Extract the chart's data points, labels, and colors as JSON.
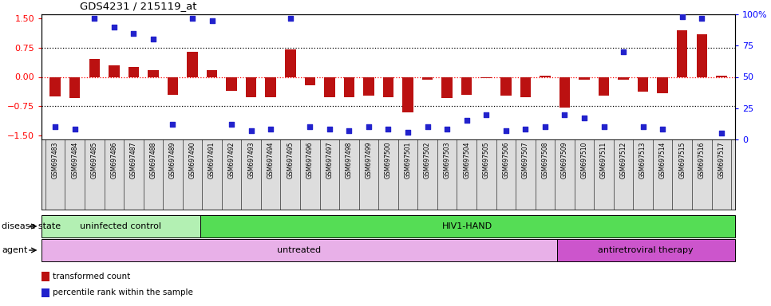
{
  "title": "GDS4231 / 215119_at",
  "samples": [
    "GSM697483",
    "GSM697484",
    "GSM697485",
    "GSM697486",
    "GSM697487",
    "GSM697488",
    "GSM697489",
    "GSM697490",
    "GSM697491",
    "GSM697492",
    "GSM697493",
    "GSM697494",
    "GSM697495",
    "GSM697496",
    "GSM697497",
    "GSM697498",
    "GSM697499",
    "GSM697500",
    "GSM697501",
    "GSM697502",
    "GSM697503",
    "GSM697504",
    "GSM697505",
    "GSM697506",
    "GSM697507",
    "GSM697508",
    "GSM697509",
    "GSM697510",
    "GSM697511",
    "GSM697512",
    "GSM697513",
    "GSM697514",
    "GSM697515",
    "GSM697516",
    "GSM697517"
  ],
  "transformed_count": [
    -0.5,
    -0.55,
    0.45,
    0.3,
    0.25,
    0.18,
    -0.45,
    0.65,
    0.18,
    -0.35,
    -0.52,
    -0.52,
    0.7,
    -0.22,
    -0.52,
    -0.52,
    -0.48,
    -0.52,
    -0.9,
    -0.08,
    -0.55,
    -0.45,
    -0.04,
    -0.48,
    -0.52,
    0.04,
    -0.78,
    -0.08,
    -0.48,
    -0.08,
    -0.38,
    -0.42,
    1.2,
    1.1,
    0.04
  ],
  "percentile_rank": [
    10,
    8,
    97,
    90,
    85,
    80,
    12,
    97,
    95,
    12,
    7,
    8,
    97,
    10,
    8,
    7,
    10,
    8,
    6,
    10,
    8,
    15,
    20,
    7,
    8,
    10,
    20,
    17,
    10,
    70,
    10,
    8,
    98,
    97,
    5
  ],
  "bar_color": "#bb1111",
  "dot_color": "#2222cc",
  "ylim_left": [
    -1.6,
    1.6
  ],
  "ylim_right": [
    0,
    100
  ],
  "yticks_left": [
    -1.5,
    -0.75,
    0.0,
    0.75,
    1.5
  ],
  "yticks_right": [
    0,
    25,
    50,
    75,
    100
  ],
  "hlines_dotted_black": [
    0.75,
    -0.75
  ],
  "hline_red_dotted": 0.0,
  "bar_width": 0.55,
  "disease_state_groups": [
    {
      "label": "uninfected control",
      "start": 0,
      "end": 8,
      "color": "#b3f0b3"
    },
    {
      "label": "HIV1-HAND",
      "start": 8,
      "end": 35,
      "color": "#55dd55"
    }
  ],
  "agent_groups": [
    {
      "label": "untreated",
      "start": 0,
      "end": 26,
      "color": "#e8b0e8"
    },
    {
      "label": "antiretroviral therapy",
      "start": 26,
      "end": 35,
      "color": "#cc55cc"
    }
  ],
  "disease_state_label": "disease state",
  "agent_label": "agent",
  "legend_items": [
    {
      "label": "transformed count",
      "color": "#bb1111"
    },
    {
      "label": "percentile rank within the sample",
      "color": "#2222cc"
    }
  ],
  "xtick_bg_color": "#dddddd",
  "background_color": "#ffffff"
}
